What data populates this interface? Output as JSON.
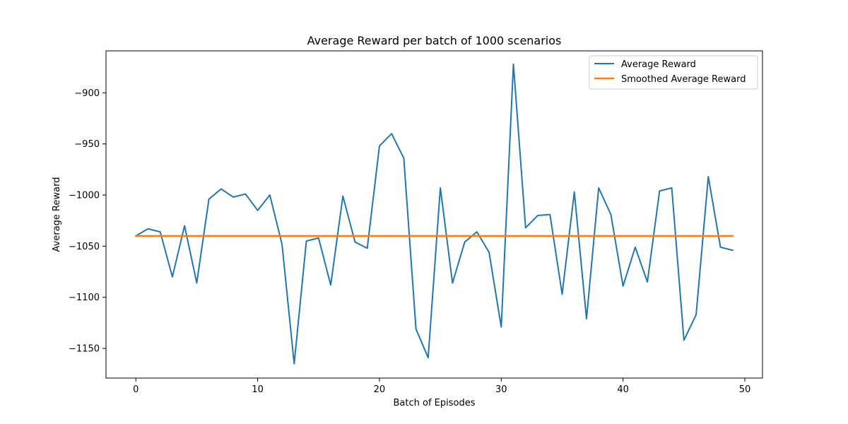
{
  "chart_data": {
    "type": "line",
    "title": "Average Reward per batch of 1000 scenarios",
    "xlabel": "Batch of Episodes",
    "ylabel": "Average Reward",
    "xlim": [
      -2.45,
      51.45
    ],
    "ylim": [
      -1179,
      -859
    ],
    "xticks": [
      0,
      10,
      20,
      30,
      40,
      50
    ],
    "yticks": [
      -1150,
      -1100,
      -1050,
      -1000,
      -950,
      -900
    ],
    "grid": false,
    "legend_position": "top-right",
    "x": [
      0,
      1,
      2,
      3,
      4,
      5,
      6,
      7,
      8,
      9,
      10,
      11,
      12,
      13,
      14,
      15,
      16,
      17,
      18,
      19,
      20,
      21,
      22,
      23,
      24,
      25,
      26,
      27,
      28,
      29,
      30,
      31,
      32,
      33,
      34,
      35,
      36,
      37,
      38,
      39,
      40,
      41,
      42,
      43,
      44,
      45,
      46,
      47,
      48,
      49
    ],
    "series": [
      {
        "name": "Average Reward",
        "color": "#1f77b4",
        "values": [
          -1040,
          -1033,
          -1036,
          -1080,
          -1030,
          -1086,
          -1004,
          -994,
          -1002,
          -999,
          -1015,
          -1000,
          -1048,
          -1165,
          -1045,
          -1042,
          -1088,
          -1001,
          -1046,
          -1052,
          -952,
          -940,
          -964,
          -1131,
          -1159,
          -993,
          -1086,
          -1046,
          -1036,
          -1056,
          -1129,
          -872,
          -1032,
          -1020,
          -1019,
          -1097,
          -997,
          -1121,
          -993,
          -1019,
          -1089,
          -1051,
          -1085,
          -996,
          -993,
          -1142,
          -1117,
          -982,
          -1051,
          -1054
        ]
      },
      {
        "name": "Smoothed Average Reward",
        "color": "#ff7f0e",
        "values": [
          -1040,
          -1040,
          -1040,
          -1040,
          -1040,
          -1040,
          -1040,
          -1040,
          -1040,
          -1040,
          -1040,
          -1040,
          -1040,
          -1040,
          -1040,
          -1040,
          -1040,
          -1040,
          -1040,
          -1040,
          -1040,
          -1040,
          -1040,
          -1040,
          -1040,
          -1040,
          -1040,
          -1040,
          -1040,
          -1040,
          -1040,
          -1040,
          -1040,
          -1040,
          -1040,
          -1040,
          -1040,
          -1040,
          -1040,
          -1040,
          -1040,
          -1040,
          -1040,
          -1040,
          -1040,
          -1040,
          -1040,
          -1040,
          -1040,
          -1040
        ]
      }
    ]
  }
}
